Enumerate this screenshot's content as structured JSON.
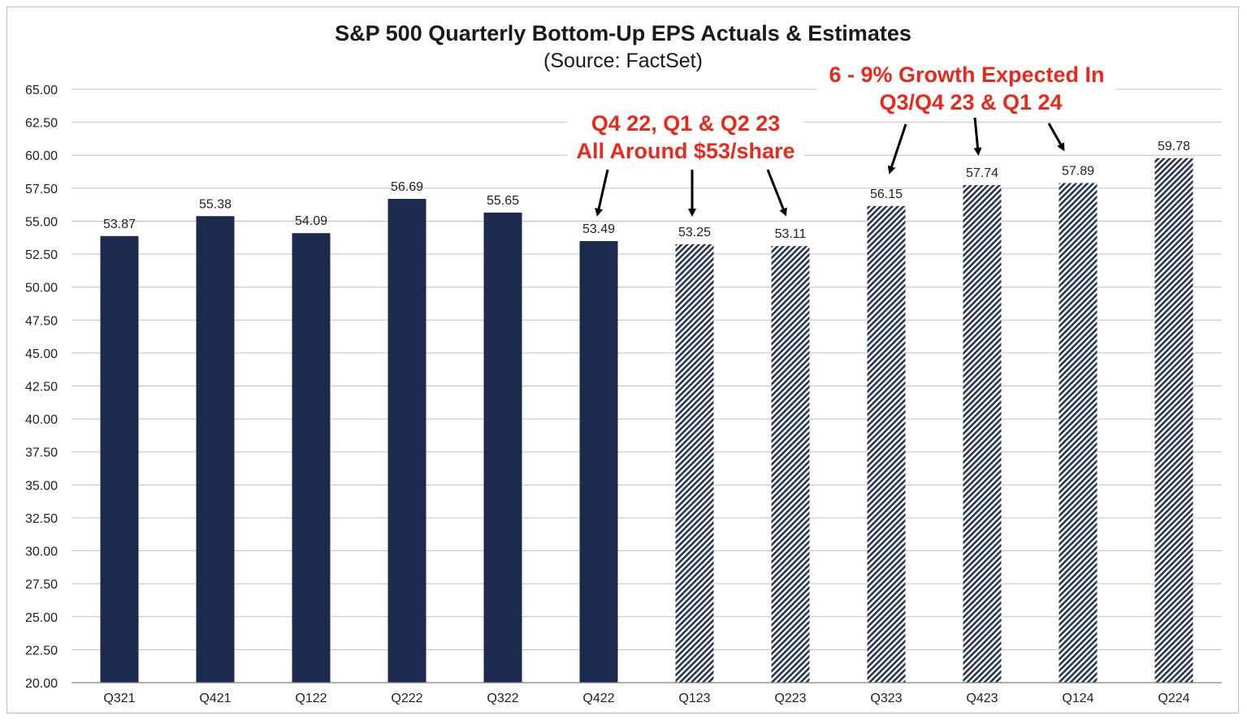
{
  "chart_data": {
    "type": "bar",
    "title": "S&P 500 Quarterly Bottom-Up EPS Actuals & Estimates",
    "subtitle": "(Source: FactSet)",
    "xlabel": "",
    "ylabel": "",
    "ylim": [
      20,
      65
    ],
    "ytick_step": 2.5,
    "yticks": [
      "65.00",
      "62.50",
      "60.00",
      "57.50",
      "55.00",
      "52.50",
      "50.00",
      "47.50",
      "45.00",
      "42.50",
      "40.00",
      "37.50",
      "35.00",
      "32.50",
      "30.00",
      "27.50",
      "25.00",
      "22.50",
      "20.00"
    ],
    "categories": [
      "Q321",
      "Q421",
      "Q122",
      "Q222",
      "Q322",
      "Q422",
      "Q123",
      "Q223",
      "Q323",
      "Q423",
      "Q124",
      "Q224"
    ],
    "values": [
      53.87,
      55.38,
      54.09,
      56.69,
      55.65,
      53.49,
      53.25,
      53.11,
      56.15,
      57.74,
      57.89,
      59.78
    ],
    "value_labels": [
      "53.87",
      "55.38",
      "54.09",
      "56.69",
      "55.65",
      "53.49",
      "53.25",
      "53.11",
      "56.15",
      "57.74",
      "57.89",
      "59.78"
    ],
    "series_kind": [
      "actual",
      "actual",
      "actual",
      "actual",
      "actual",
      "actual",
      "estimate",
      "estimate",
      "estimate",
      "estimate",
      "estimate",
      "estimate"
    ],
    "grid": true,
    "colors": {
      "actual": "#1b2a4e",
      "estimate_stripe": "#2a3450",
      "annotation": "#e8291c",
      "grid": "#bfbfbf",
      "arrow": "#000000"
    },
    "annotations": [
      {
        "lines": [
          "Q4 22, Q1 & Q2 23",
          "All Around $53/share"
        ],
        "points_to": [
          "Q422",
          "Q123",
          "Q223"
        ]
      },
      {
        "lines": [
          "6 - 9% Growth Expected In",
          "Q3/Q4 23 & Q1 24"
        ],
        "points_to": [
          "Q323",
          "Q423",
          "Q124"
        ]
      }
    ]
  }
}
